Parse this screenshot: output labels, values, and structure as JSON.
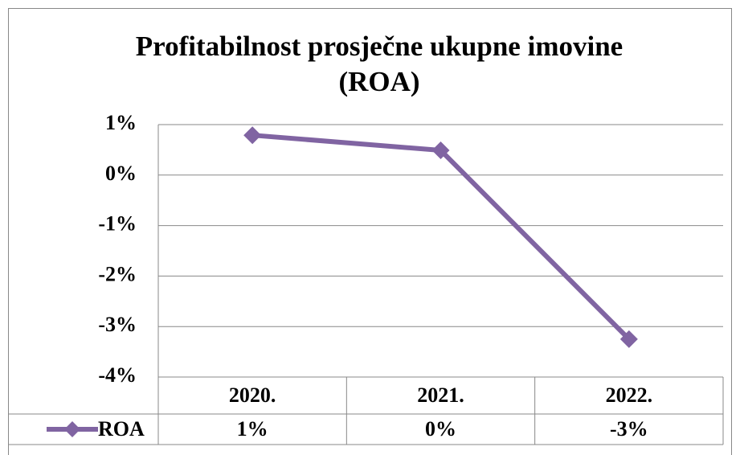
{
  "chart_data": {
    "type": "line",
    "title": "Profitabilnost prosječne ukupne imovine (ROA)",
    "categories": [
      "2020.",
      "2021.",
      "2022."
    ],
    "series": [
      {
        "name": "ROA",
        "color": "#8064a2",
        "values": [
          0.79,
          0.49,
          -3.25
        ],
        "value_labels": [
          "1%",
          "0%",
          "-3%"
        ]
      }
    ],
    "ylim": [
      -4,
      1
    ],
    "yticks": [
      {
        "value": -4,
        "label": "-4%"
      },
      {
        "value": -3,
        "label": "-3%"
      },
      {
        "value": -2,
        "label": "-2%"
      },
      {
        "value": -1,
        "label": "-1%"
      },
      {
        "value": 0,
        "label": "0%"
      },
      {
        "value": 1,
        "label": "1%"
      }
    ],
    "grid": true
  }
}
